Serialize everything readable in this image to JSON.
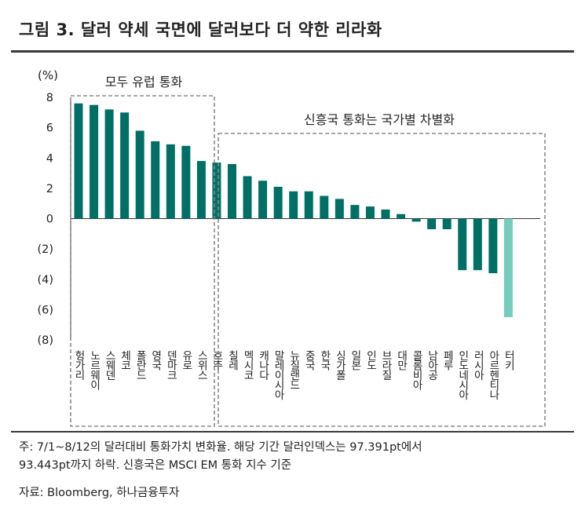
{
  "title": "그림 3. 달러 약세 국면에 달러보다 더 약한 리라화",
  "notes": {
    "line1": "주: 7/1~8/12의 달러대비 통화가치 변화율. 해당 기간 달러인덱스는 97.391pt에서",
    "line2": "93.443pt까지 하락. 신흥국은 MSCI EM 통화 지수 기준",
    "source": "자료: Bloomberg, 하나금융투자"
  },
  "chart_data": {
    "type": "bar",
    "unit_label": "(%)",
    "ylim": [
      -8,
      8
    ],
    "yticks": [
      8,
      6,
      4,
      2,
      0,
      -2,
      -4,
      -6,
      -8
    ],
    "ytick_labels": [
      "8",
      "6",
      "4",
      "2",
      "0",
      "(2)",
      "(4)",
      "(6)",
      "(8)"
    ],
    "categories": [
      "헝가리",
      "노르웨이",
      "스웨덴",
      "체코",
      "폴란드",
      "영국",
      "덴마크",
      "유로",
      "스위스",
      "호주",
      "칠레",
      "멕시코",
      "캐나다",
      "말레이시아",
      "뉴질랜드",
      "중국",
      "한국",
      "싱가폴",
      "일본",
      "인도",
      "브라질",
      "대만",
      "콜롬비아",
      "남아공",
      "페루",
      "인도네시아",
      "러시아",
      "아르헨티나",
      "터키"
    ],
    "values": [
      7.6,
      7.5,
      7.2,
      7.0,
      5.8,
      5.1,
      4.9,
      4.8,
      3.8,
      3.7,
      3.6,
      2.8,
      2.5,
      2.1,
      1.8,
      1.8,
      1.5,
      1.3,
      0.9,
      0.8,
      0.6,
      0.3,
      -0.2,
      -0.7,
      -0.7,
      -3.4,
      -3.4,
      -3.6,
      -6.5
    ],
    "highlight_category": "터키",
    "colors": {
      "bar": "#006F65",
      "highlight": "#76CDBE"
    },
    "groups": [
      {
        "label": "모두 유럽 통화",
        "first": 0,
        "last": 8
      },
      {
        "label": "신흥국 통화는 국가별 차별화",
        "first": 9,
        "last": 28
      }
    ]
  }
}
